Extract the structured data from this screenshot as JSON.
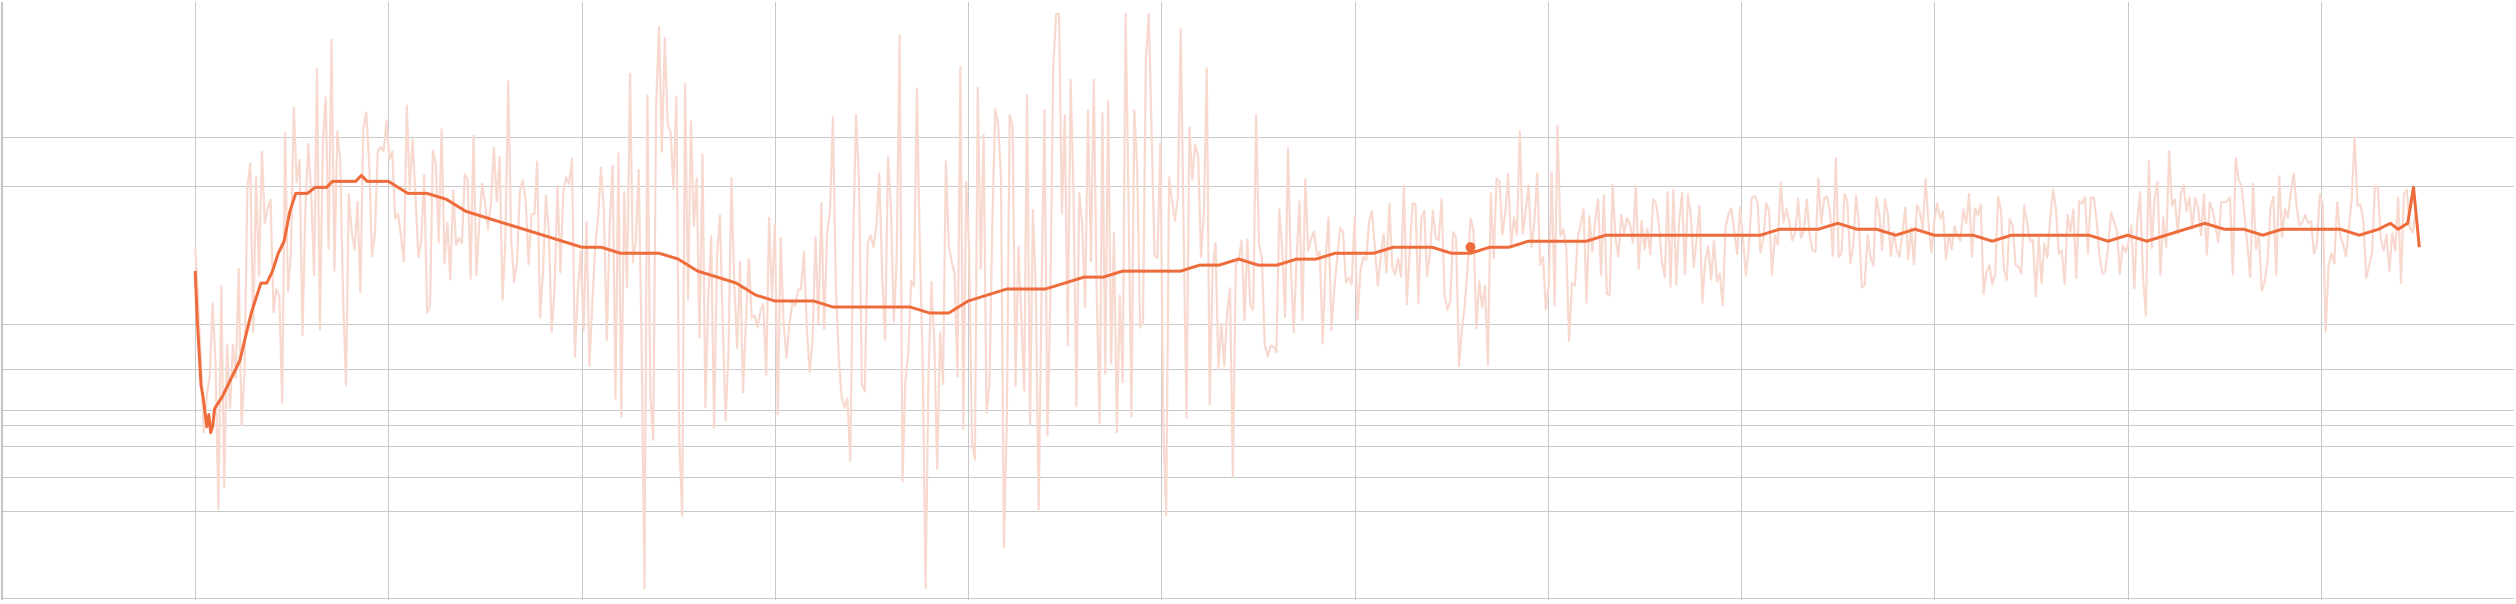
{
  "chart_data": {
    "type": "line",
    "title": "",
    "xlabel": "",
    "ylabel": "",
    "grid": true,
    "legend": "none",
    "xlim": [
      0,
      1300
    ],
    "ylim": [
      0,
      1
    ],
    "x_gridlines": [
      100,
      200,
      300,
      400,
      500,
      600,
      700,
      800,
      900,
      1000,
      1100,
      1200
    ],
    "y_gridlines": [
      0.003,
      0.148,
      0.206,
      0.258,
      0.293,
      0.318,
      0.387,
      0.461,
      0.693,
      0.774
    ],
    "series": [
      {
        "style": "raw",
        "color": "#f8d9cf",
        "x_start": 100,
        "x_end": 1250,
        "start_y": 0.4,
        "spike_points": [
          {
            "x": 102,
            "y": 0.47
          },
          {
            "x": 106,
            "y": 0.21
          },
          {
            "x": 112,
            "y": 0.05
          },
          {
            "x": 117,
            "y": 0.27
          },
          {
            "x": 130,
            "y": 0.79
          },
          {
            "x": 150,
            "y": 0.89
          },
          {
            "x": 175,
            "y": 0.91
          },
          {
            "x": 200,
            "y": 0.81
          },
          {
            "x": 240,
            "y": 0.74
          },
          {
            "x": 300,
            "y": 0.7
          },
          {
            "x": 339,
            "y": 0.97
          },
          {
            "x": 400,
            "y": 0.43
          },
          {
            "x": 470,
            "y": 0.21
          },
          {
            "x": 540,
            "y": 0.16
          },
          {
            "x": 650,
            "y": 0.42
          },
          {
            "x": 700,
            "y": 0.6
          },
          {
            "x": 800,
            "y": 0.68
          },
          {
            "x": 900,
            "y": 0.63
          },
          {
            "x": 1000,
            "y": 0.6
          },
          {
            "x": 1100,
            "y": 0.63
          },
          {
            "x": 1200,
            "y": 0.67
          },
          {
            "x": 1250,
            "y": 0.63
          }
        ]
      },
      {
        "style": "smoothed",
        "color": "#ee6b3b",
        "x": [
          100,
          101,
          103,
          104,
          106,
          107,
          108,
          109,
          110,
          112,
          114,
          117,
          120,
          123,
          126,
          129,
          131,
          134,
          137,
          140,
          143,
          146,
          149,
          152,
          155,
          158,
          162,
          165,
          168,
          171,
          174,
          177,
          180,
          183,
          186,
          189,
          195,
          200,
          205,
          210,
          215,
          220,
          230,
          240,
          250,
          260,
          270,
          280,
          290,
          300,
          310,
          320,
          330,
          340,
          350,
          360,
          370,
          380,
          390,
          400,
          410,
          420,
          430,
          440,
          450,
          460,
          470,
          480,
          490,
          500,
          510,
          520,
          530,
          540,
          550,
          560,
          570,
          580,
          590,
          600,
          610,
          620,
          630,
          640,
          650,
          660,
          670,
          680,
          690,
          700,
          710,
          720,
          730,
          740,
          750,
          760,
          770,
          780,
          790,
          800,
          810,
          820,
          830,
          840,
          850,
          860,
          870,
          880,
          890,
          900,
          910,
          920,
          930,
          940,
          950,
          960,
          970,
          980,
          990,
          1000,
          1010,
          1020,
          1030,
          1040,
          1050,
          1060,
          1070,
          1080,
          1090,
          1100,
          1110,
          1120,
          1130,
          1140,
          1150,
          1160,
          1170,
          1180,
          1190,
          1200,
          1210,
          1220,
          1230,
          1236,
          1240,
          1245,
          1248,
          1251
        ],
        "values": [
          0.55,
          0.47,
          0.36,
          0.34,
          0.29,
          0.31,
          0.28,
          0.29,
          0.32,
          0.33,
          0.34,
          0.36,
          0.38,
          0.4,
          0.44,
          0.48,
          0.5,
          0.53,
          0.53,
          0.55,
          0.58,
          0.6,
          0.65,
          0.68,
          0.68,
          0.68,
          0.69,
          0.69,
          0.69,
          0.7,
          0.7,
          0.7,
          0.7,
          0.7,
          0.71,
          0.7,
          0.7,
          0.7,
          0.69,
          0.68,
          0.68,
          0.68,
          0.67,
          0.65,
          0.64,
          0.63,
          0.62,
          0.61,
          0.6,
          0.59,
          0.59,
          0.58,
          0.58,
          0.58,
          0.57,
          0.55,
          0.54,
          0.53,
          0.51,
          0.5,
          0.5,
          0.5,
          0.49,
          0.49,
          0.49,
          0.49,
          0.49,
          0.48,
          0.48,
          0.5,
          0.51,
          0.52,
          0.52,
          0.52,
          0.53,
          0.54,
          0.54,
          0.55,
          0.55,
          0.55,
          0.55,
          0.56,
          0.56,
          0.57,
          0.56,
          0.56,
          0.57,
          0.57,
          0.58,
          0.58,
          0.58,
          0.59,
          0.59,
          0.59,
          0.58,
          0.58,
          0.59,
          0.59,
          0.6,
          0.6,
          0.6,
          0.6,
          0.61,
          0.61,
          0.61,
          0.61,
          0.61,
          0.61,
          0.61,
          0.61,
          0.61,
          0.62,
          0.62,
          0.62,
          0.63,
          0.62,
          0.62,
          0.61,
          0.62,
          0.61,
          0.61,
          0.61,
          0.6,
          0.61,
          0.61,
          0.61,
          0.61,
          0.61,
          0.6,
          0.61,
          0.6,
          0.61,
          0.62,
          0.63,
          0.62,
          0.62,
          0.61,
          0.62,
          0.62,
          0.62,
          0.62,
          0.61,
          0.62,
          0.63,
          0.62,
          0.63,
          0.69,
          0.59
        ],
        "marker": {
          "x": 760,
          "y": 0.59
        }
      }
    ]
  }
}
